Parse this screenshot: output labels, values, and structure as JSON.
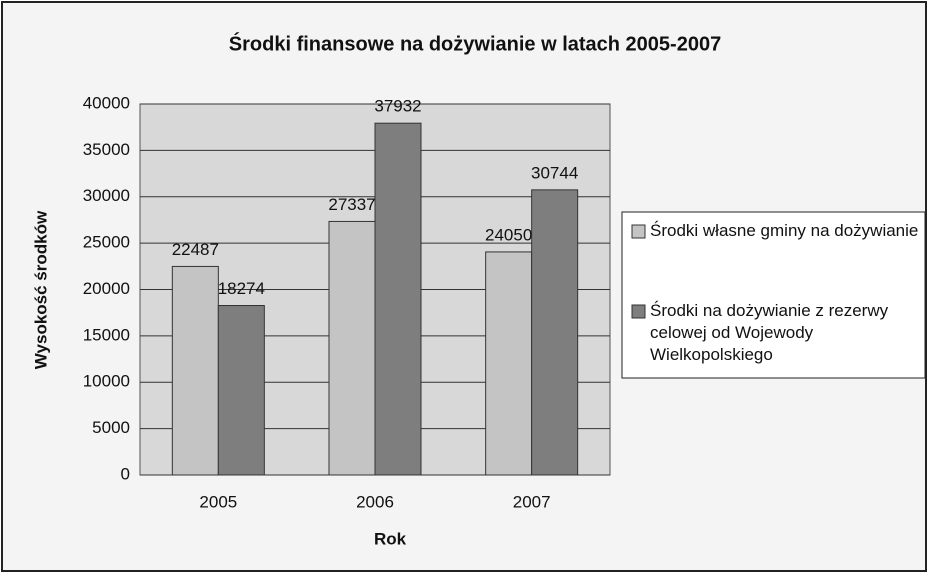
{
  "chart_data": {
    "type": "bar",
    "title": "Środki finansowe na dożywianie w latach 2005-2007",
    "x_label": "Rok",
    "y_label": "Wysokość środków",
    "categories": [
      "2005",
      "2006",
      "2007"
    ],
    "series": [
      {
        "name": "Środki własne gminy na dożywianie",
        "color": "#c4c4c4",
        "values": [
          22487,
          27337,
          24050
        ]
      },
      {
        "name": "Środki na dożywianie z rezerwy celowej od Wojewody Wielkopolskiego",
        "color": "#7e7e7e",
        "values": [
          18274,
          37932,
          30744
        ]
      }
    ],
    "ylim": [
      0,
      40000
    ],
    "yticks": [
      0,
      5000,
      10000,
      15000,
      20000,
      25000,
      30000,
      35000,
      40000
    ],
    "grid": true,
    "legend": "right"
  }
}
